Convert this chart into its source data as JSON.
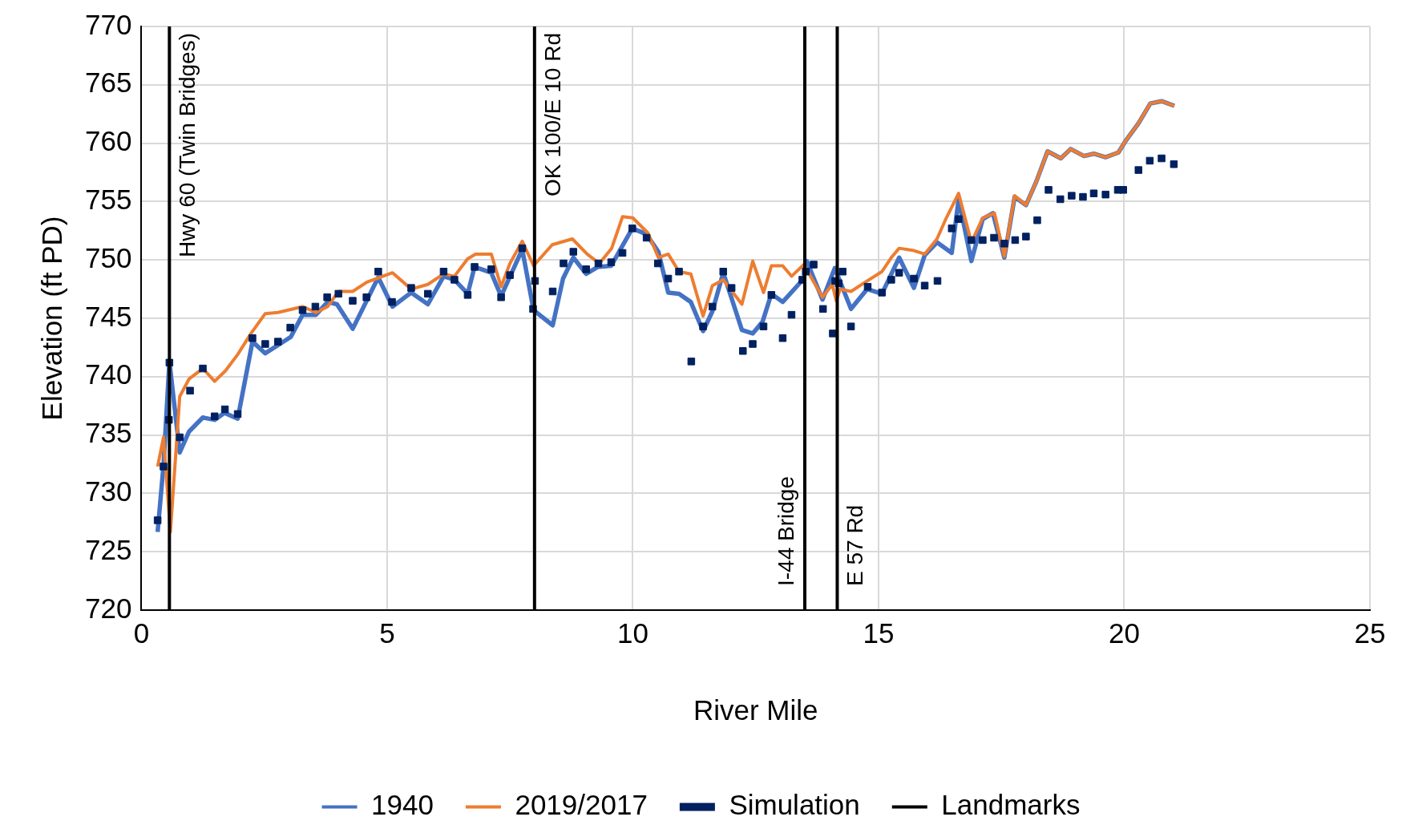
{
  "chart_data": {
    "type": "line",
    "xlabel": "River Mile",
    "ylabel": "Elevation (ft PD)",
    "xlim": [
      0,
      25
    ],
    "xticks": [
      0,
      5,
      10,
      15,
      20,
      25
    ],
    "ylim": [
      720,
      770
    ],
    "yticks": [
      720,
      725,
      730,
      735,
      740,
      745,
      750,
      755,
      760,
      765,
      770
    ],
    "grid": true,
    "legend": "bottom",
    "series": [
      {
        "name": "1940",
        "color": "#4472c4",
        "marker": "none",
        "x": [
          0.33,
          0.45,
          0.57,
          0.78,
          0.97,
          1.25,
          1.49,
          1.69,
          1.96,
          2.26,
          2.52,
          2.78,
          3.04,
          3.28,
          3.55,
          3.79,
          3.98,
          4.3,
          4.82,
          5.11,
          5.49,
          5.83,
          6.15,
          6.37,
          6.64,
          6.78,
          7.12,
          7.32,
          7.75,
          7.98,
          8.37,
          8.58,
          8.79,
          9.05,
          9.29,
          9.56,
          9.99,
          10.28,
          10.52,
          10.72,
          10.94,
          11.18,
          11.43,
          11.62,
          11.84,
          12.22,
          12.44,
          12.64,
          12.82,
          13.05,
          13.48,
          13.54,
          13.86,
          14.11,
          14.44,
          14.77,
          15.07,
          15.42,
          15.72,
          15.94,
          16.19,
          16.49,
          16.63,
          16.89,
          17.12,
          17.33,
          17.56,
          17.77,
          18.0,
          18.21,
          18.44,
          18.71,
          18.91,
          19.18,
          19.38,
          19.62,
          19.88,
          20.03,
          20.29,
          20.53,
          20.76,
          21.02
        ],
        "values": [
          726.7,
          732.4,
          741.3,
          733.5,
          735.3,
          736.5,
          736.3,
          736.9,
          736.4,
          743.0,
          742.0,
          742.7,
          743.4,
          745.3,
          745.3,
          746.4,
          746.2,
          744.1,
          748.5,
          746.0,
          747.2,
          746.2,
          748.6,
          748.3,
          747.1,
          749.4,
          748.9,
          746.9,
          750.9,
          745.7,
          744.4,
          748.4,
          750.2,
          748.8,
          749.4,
          749.5,
          752.7,
          752.2,
          750.7,
          747.2,
          747.1,
          746.4,
          743.9,
          745.6,
          748.9,
          744.0,
          743.7,
          744.7,
          747.1,
          746.4,
          748.4,
          749.9,
          746.6,
          749.3,
          745.8,
          747.5,
          747.1,
          750.2,
          747.6,
          750.4,
          751.5,
          750.6,
          755.2,
          749.9,
          753.5,
          754.0,
          750.2,
          755.4,
          754.7,
          756.7,
          759.3,
          758.7,
          759.5,
          758.9,
          759.1,
          758.8,
          759.2,
          760.2,
          761.7,
          763.4,
          763.6,
          763.2
        ]
      },
      {
        "name": "2019/2017",
        "color": "#ed7d31",
        "marker": "none",
        "x": [
          0.33,
          0.45,
          0.59,
          0.78,
          0.97,
          1.25,
          1.49,
          1.71,
          1.96,
          2.23,
          2.52,
          2.78,
          3.28,
          3.55,
          3.79,
          4.01,
          4.3,
          4.59,
          5.11,
          5.49,
          5.83,
          6.15,
          6.37,
          6.64,
          6.8,
          7.12,
          7.32,
          7.5,
          7.75,
          7.98,
          8.36,
          8.77,
          9.07,
          9.32,
          9.57,
          9.79,
          10.0,
          10.31,
          10.52,
          10.72,
          10.94,
          11.18,
          11.43,
          11.62,
          11.84,
          12.22,
          12.44,
          12.66,
          12.82,
          13.05,
          13.23,
          13.48,
          13.86,
          14.06,
          14.14,
          14.22,
          14.44,
          14.77,
          15.07,
          15.26,
          15.42,
          15.72,
          15.94,
          16.19,
          16.38,
          16.63,
          16.89,
          17.12,
          17.36,
          17.56,
          17.77,
          18.0,
          18.21,
          18.44,
          18.71,
          18.91,
          19.18,
          19.38,
          19.62,
          19.88,
          20.03,
          20.29,
          20.53,
          20.76,
          21.02
        ],
        "values": [
          732.3,
          734.8,
          726.7,
          738.3,
          739.8,
          740.7,
          739.6,
          740.5,
          741.9,
          743.7,
          745.4,
          745.5,
          746.0,
          745.5,
          746.0,
          747.3,
          747.3,
          748.1,
          748.9,
          747.5,
          747.9,
          748.8,
          748.6,
          750.1,
          750.5,
          750.5,
          747.7,
          749.7,
          751.6,
          749.5,
          751.3,
          751.8,
          750.5,
          749.7,
          751.0,
          753.7,
          753.6,
          752.3,
          750.2,
          750.5,
          749.0,
          748.8,
          745.2,
          747.8,
          748.3,
          746.2,
          749.9,
          747.2,
          749.5,
          749.5,
          748.6,
          749.6,
          746.8,
          747.9,
          746.5,
          747.5,
          747.3,
          748.2,
          749.0,
          750.2,
          751.0,
          750.8,
          750.5,
          751.8,
          753.6,
          755.7,
          751.5,
          753.6,
          754.0,
          750.3,
          755.5,
          754.7,
          756.7,
          759.3,
          758.7,
          759.5,
          758.9,
          759.1,
          758.8,
          759.2,
          760.2,
          761.7,
          763.4,
          763.6,
          763.2
        ]
      },
      {
        "name": "Simulation",
        "type": "scatter",
        "color": "#002060",
        "marker": "square",
        "x": [
          0.33,
          0.45,
          0.56,
          0.57,
          0.78,
          0.99,
          1.25,
          1.49,
          1.7,
          1.96,
          2.26,
          2.52,
          2.78,
          3.03,
          3.28,
          3.54,
          3.78,
          4.01,
          4.3,
          4.58,
          4.82,
          5.1,
          5.49,
          5.83,
          6.15,
          6.37,
          6.64,
          6.78,
          7.12,
          7.32,
          7.5,
          7.75,
          7.97,
          8.01,
          8.37,
          8.59,
          8.79,
          9.05,
          9.3,
          9.56,
          9.79,
          9.99,
          10.28,
          10.51,
          10.72,
          10.94,
          11.19,
          11.43,
          11.62,
          11.84,
          12.01,
          12.24,
          12.44,
          12.66,
          12.82,
          13.05,
          13.23,
          13.45,
          13.52,
          13.68,
          13.87,
          14.07,
          14.12,
          14.19,
          14.27,
          14.44,
          14.78,
          15.07,
          15.26,
          15.42,
          15.72,
          15.94,
          16.2,
          16.49,
          16.63,
          16.89,
          17.12,
          17.35,
          17.56,
          17.78,
          18.0,
          18.23,
          18.46,
          18.7,
          18.93,
          19.16,
          19.38,
          19.62,
          19.87,
          19.98,
          20.29,
          20.52,
          20.76,
          21.01
        ],
        "values": [
          727.7,
          732.3,
          736.3,
          741.2,
          734.8,
          738.8,
          740.7,
          736.6,
          737.2,
          736.8,
          743.3,
          742.8,
          743.0,
          744.2,
          745.7,
          746.0,
          746.8,
          747.1,
          746.5,
          746.8,
          749.0,
          746.4,
          747.6,
          747.1,
          749.0,
          748.3,
          747.0,
          749.4,
          749.2,
          746.8,
          748.7,
          751.0,
          745.8,
          748.2,
          747.3,
          749.7,
          750.7,
          749.2,
          749.7,
          749.8,
          750.6,
          752.7,
          751.9,
          749.7,
          748.4,
          749.0,
          741.3,
          744.3,
          746.0,
          749.0,
          747.6,
          742.2,
          742.8,
          744.3,
          747.0,
          743.3,
          745.3,
          748.3,
          749.0,
          749.6,
          745.8,
          743.7,
          748.2,
          748.0,
          749.0,
          744.3,
          747.7,
          747.2,
          748.3,
          748.9,
          748.4,
          747.8,
          748.2,
          752.7,
          753.5,
          751.7,
          751.7,
          751.9,
          751.4,
          751.7,
          752.0,
          753.4,
          756.0,
          755.2,
          755.5,
          755.4,
          755.7,
          755.6,
          756.0,
          756.0,
          757.7,
          758.5,
          758.7,
          758.2
        ]
      },
      {
        "name": "Landmarks",
        "color": "#000000",
        "marker": "none"
      }
    ],
    "ref_lines": [
      {
        "axis": "x",
        "value": 0.57,
        "label": "Hwy 60 (Twin Bridges)",
        "color": "#000000"
      },
      {
        "axis": "x",
        "value": 8.0,
        "label": "OK 100/E 10 Rd",
        "color": "#000000"
      },
      {
        "axis": "x",
        "value": 13.5,
        "label": "I-44 Bridge",
        "color": "#000000"
      },
      {
        "axis": "x",
        "value": 14.16,
        "label": "E 57 Rd",
        "color": "#000000"
      }
    ]
  }
}
